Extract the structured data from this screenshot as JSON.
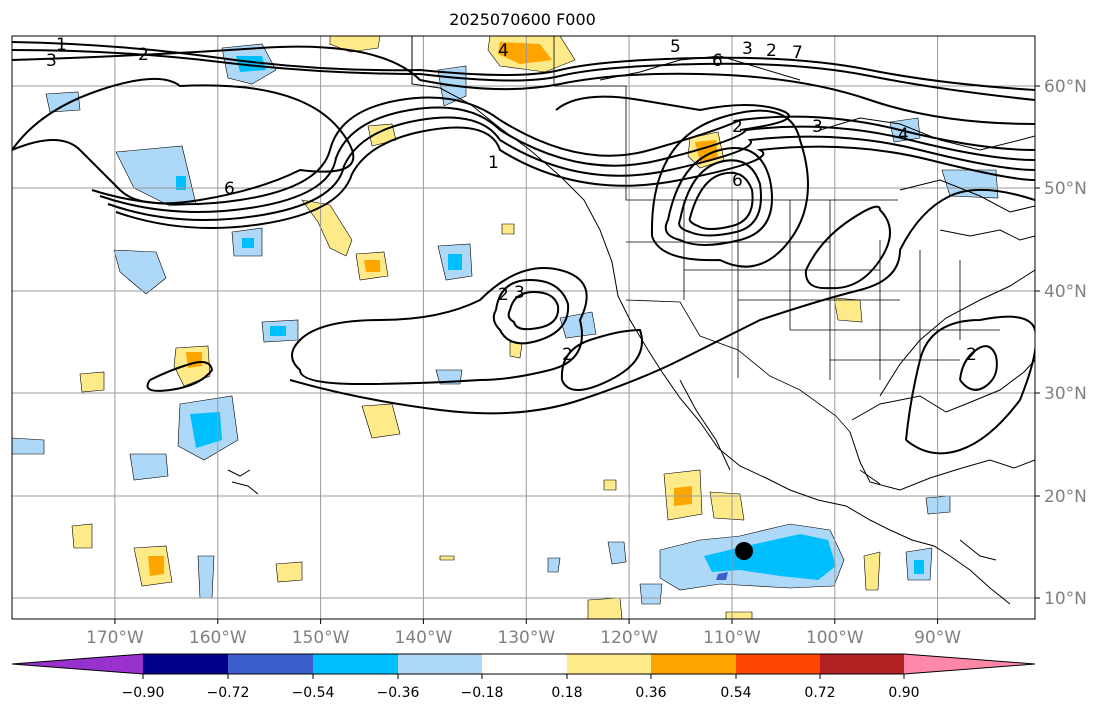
{
  "title": "2025070600 F000",
  "map": {
    "lon_labels": [
      "170°W",
      "160°W",
      "150°W",
      "140°W",
      "130°W",
      "120°W",
      "110°W",
      "100°W",
      "90°W"
    ],
    "lat_labels": [
      "60°N",
      "50°N",
      "40°N",
      "30°N",
      "20°N",
      "10°N"
    ],
    "contour_labels": [
      "1",
      "2",
      "3",
      "4",
      "5",
      "6",
      "7",
      "2",
      "3",
      "6",
      "2",
      "3",
      "2",
      "2",
      "1",
      "6",
      "4",
      "2",
      "3"
    ],
    "marker": "storm-center"
  },
  "colorbar": {
    "ticks": [
      "−0.90",
      "−0.72",
      "−0.54",
      "−0.36",
      "−0.18",
      "0.18",
      "0.36",
      "0.54",
      "0.72",
      "0.90"
    ],
    "colors": [
      "#9932cc",
      "#00008b",
      "#3a5fcd",
      "#00bfff",
      "#add8f7",
      "#ffffff",
      "#ffea8a",
      "#ffa500",
      "#ff4500",
      "#b22222",
      "#ff88aa"
    ]
  }
}
